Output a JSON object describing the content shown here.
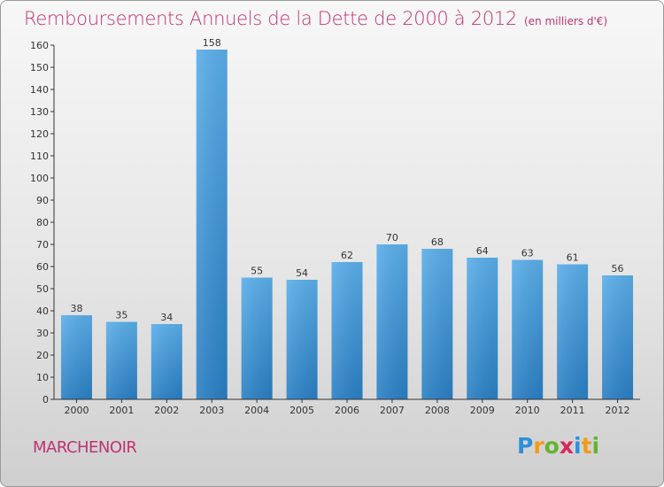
{
  "title": "Remboursements Annuels de la Dette de 2000 à 2012",
  "unit": "(en milliers d'€)",
  "commune": "MARCHENOIR",
  "logo": {
    "letters": [
      "P",
      "r",
      "o",
      "x",
      "i",
      "t",
      "i"
    ],
    "colors": [
      "#2f8fd8",
      "#f29a1b",
      "#66b32e",
      "#d8275f",
      "#2f8fd8",
      "#f29a1b",
      "#66b32e"
    ]
  },
  "chart_data": {
    "type": "bar",
    "categories": [
      "2000",
      "2001",
      "2002",
      "2003",
      "2004",
      "2005",
      "2006",
      "2007",
      "2008",
      "2009",
      "2010",
      "2011",
      "2012"
    ],
    "values": [
      38,
      35,
      34,
      158,
      55,
      54,
      62,
      70,
      68,
      64,
      63,
      61,
      56
    ],
    "ylim": [
      0,
      160
    ],
    "yticks": [
      0,
      10,
      20,
      30,
      40,
      50,
      60,
      70,
      80,
      90,
      100,
      110,
      120,
      130,
      140,
      150,
      160
    ],
    "grid": false,
    "legend": "none",
    "bar_color": "#4da3e3"
  }
}
